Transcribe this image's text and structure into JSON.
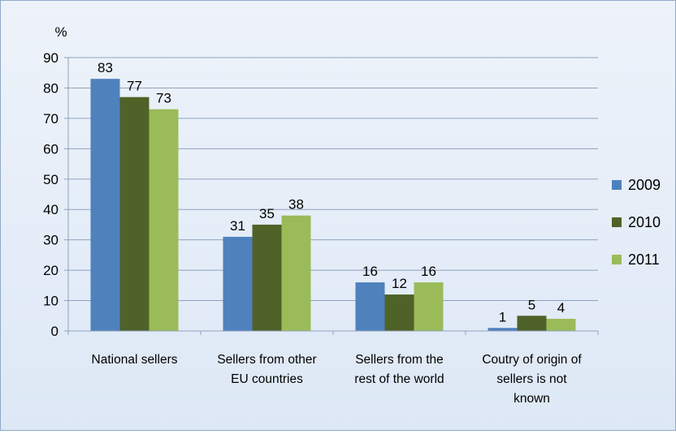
{
  "chart_data": {
    "type": "bar",
    "title": "",
    "ylabel": "%",
    "xlabel": "",
    "ylim": [
      0,
      90
    ],
    "yticks": [
      0,
      10,
      20,
      30,
      40,
      50,
      60,
      70,
      80,
      90
    ],
    "grid": true,
    "legend_position": "right",
    "categories": [
      [
        "National sellers"
      ],
      [
        "Sellers from other",
        "EU countries"
      ],
      [
        "Sellers from the",
        "rest of the world"
      ],
      [
        "Coutry of origin of",
        "sellers is not",
        "known"
      ]
    ],
    "series": [
      {
        "name": "2009",
        "color": "#4f81bd",
        "values": [
          83,
          31,
          16,
          1
        ]
      },
      {
        "name": "2010",
        "color": "#4f6228",
        "values": [
          77,
          35,
          12,
          5
        ]
      },
      {
        "name": "2011",
        "color": "#9bbb59",
        "values": [
          73,
          38,
          16,
          4
        ]
      }
    ]
  }
}
